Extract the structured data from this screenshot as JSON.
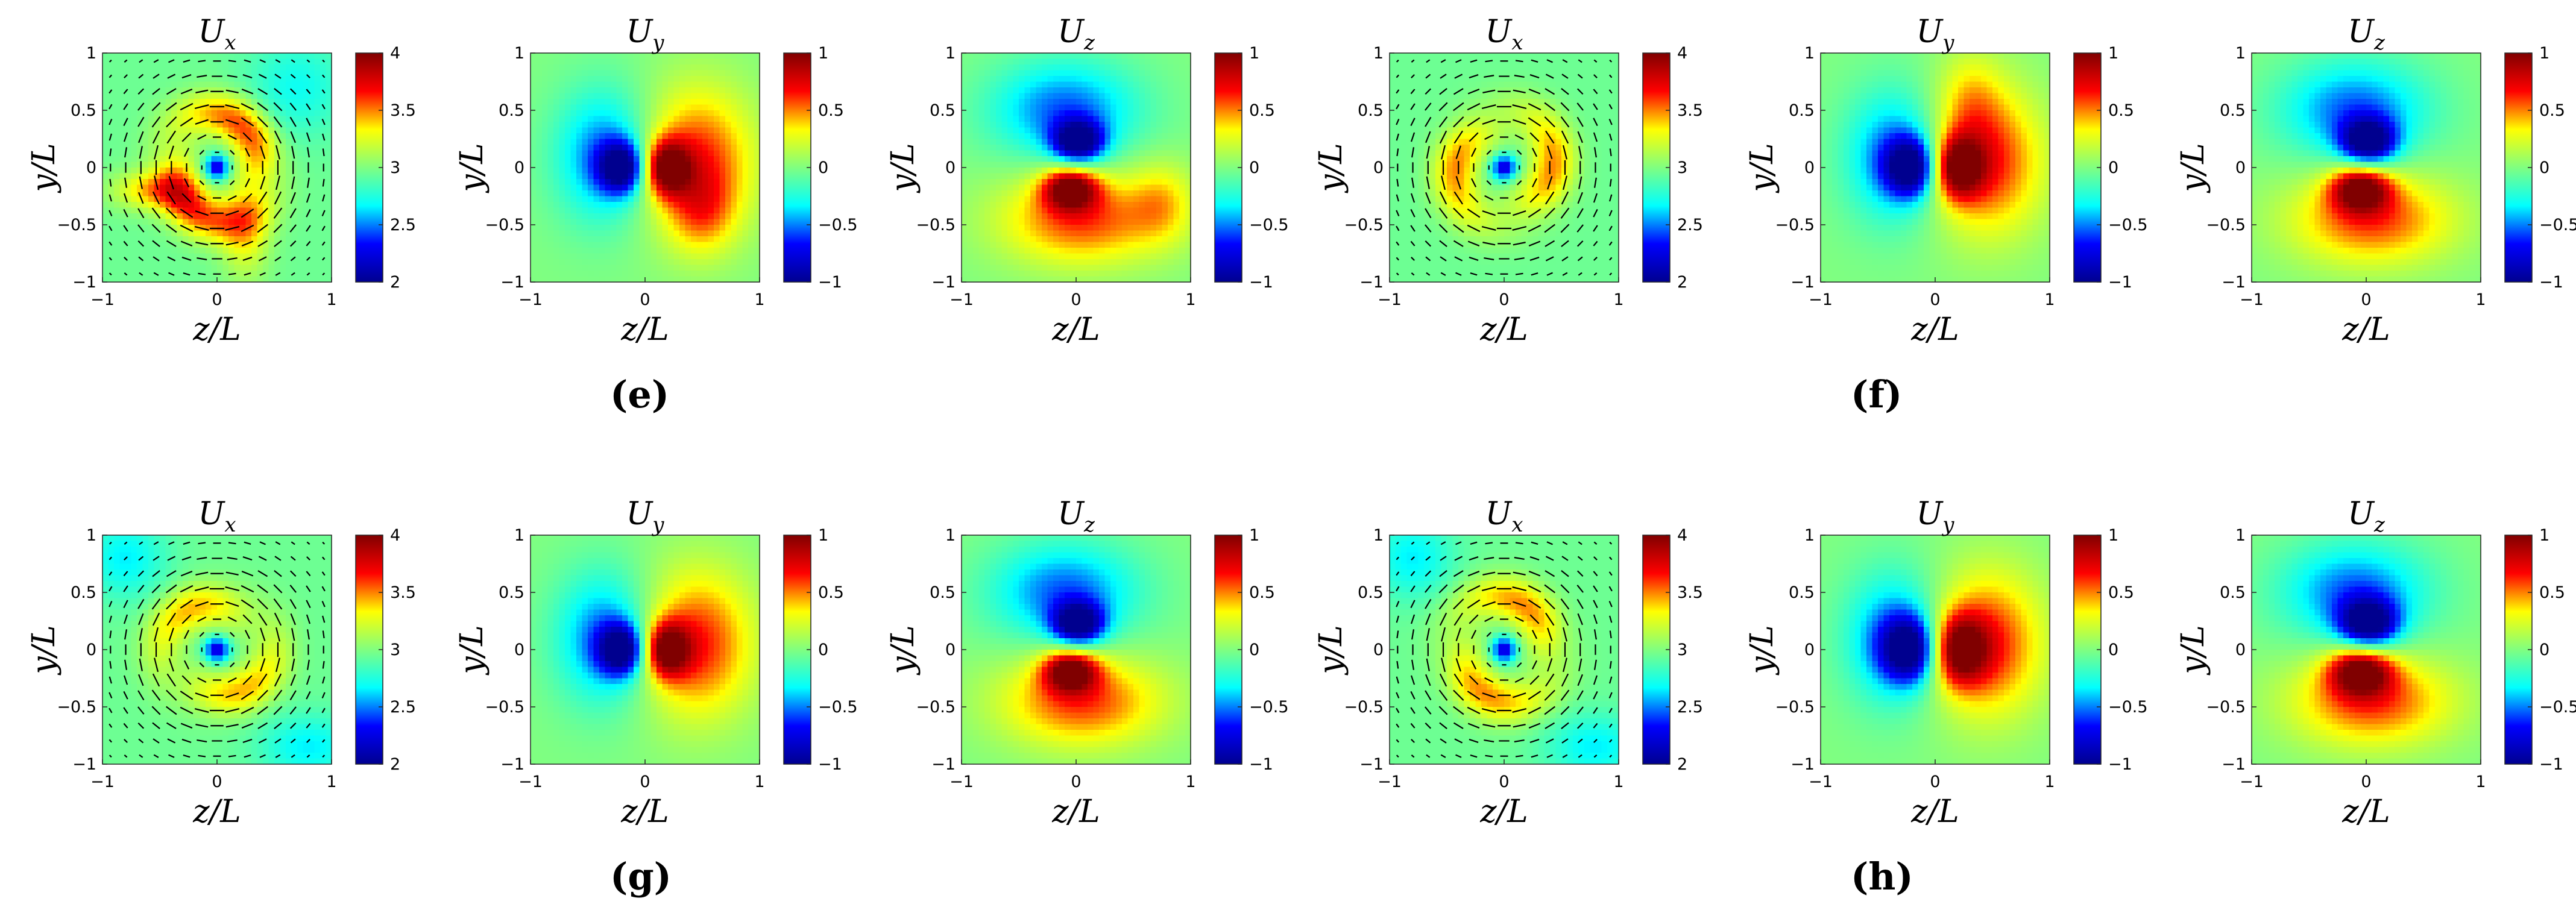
{
  "colors": {
    "colormap": [
      "#00008f",
      "#0000ff",
      "#00ffff",
      "#80ff80",
      "#ffff00",
      "#ff0000",
      "#800000"
    ],
    "arrow": "#000000",
    "axis": "#262626"
  },
  "axes_text": {
    "xlabel": "z/L",
    "ylabel": "y/L",
    "x_ticks": [
      "−1",
      "0",
      "1"
    ],
    "y_ticks": [
      "1",
      "0.5",
      "0",
      "−0.5",
      "−1"
    ]
  },
  "panel_labels": [
    "(e)",
    "(f)",
    "(g)",
    "(h)"
  ],
  "chart_data": [
    {
      "type": "heatmap",
      "title": "U_x",
      "xlabel": "z/L",
      "ylabel": "y/L",
      "xlim": [
        -1,
        1
      ],
      "ylim": [
        -1,
        1
      ],
      "clim": [
        2,
        4
      ],
      "colorbar_ticks": [
        "4",
        "3.5",
        "3",
        "2.5",
        "2"
      ],
      "field": "ux",
      "variant": 0,
      "arrows": true,
      "group": "(e)"
    },
    {
      "type": "heatmap",
      "title": "U_y",
      "xlabel": "z/L",
      "ylabel": "y/L",
      "xlim": [
        -1,
        1
      ],
      "ylim": [
        -1,
        1
      ],
      "clim": [
        -1,
        1
      ],
      "colorbar_ticks": [
        "1",
        "0.5",
        "0",
        "−0.5",
        "−1"
      ],
      "field": "uy",
      "variant": 0,
      "arrows": false,
      "group": "(e)"
    },
    {
      "type": "heatmap",
      "title": "U_z",
      "xlabel": "z/L",
      "ylabel": "y/L",
      "xlim": [
        -1,
        1
      ],
      "ylim": [
        -1,
        1
      ],
      "clim": [
        -1,
        1
      ],
      "colorbar_ticks": [
        "1",
        "0.5",
        "0",
        "−0.5",
        "−1"
      ],
      "field": "uz",
      "variant": 0,
      "arrows": false,
      "group": "(e)"
    },
    {
      "type": "heatmap",
      "title": "U_x",
      "xlabel": "z/L",
      "ylabel": "y/L",
      "xlim": [
        -1,
        1
      ],
      "ylim": [
        -1,
        1
      ],
      "clim": [
        2,
        4
      ],
      "colorbar_ticks": [
        "4",
        "3.5",
        "3",
        "2.5",
        "2"
      ],
      "field": "ux",
      "variant": 1,
      "arrows": true,
      "group": "(f)"
    },
    {
      "type": "heatmap",
      "title": "U_y",
      "xlabel": "z/L",
      "ylabel": "y/L",
      "xlim": [
        -1,
        1
      ],
      "ylim": [
        -1,
        1
      ],
      "clim": [
        -1,
        1
      ],
      "colorbar_ticks": [
        "1",
        "0.5",
        "0",
        "−0.5",
        "−1"
      ],
      "field": "uy",
      "variant": 1,
      "arrows": false,
      "group": "(f)"
    },
    {
      "type": "heatmap",
      "title": "U_z",
      "xlabel": "z/L",
      "ylabel": "y/L",
      "xlim": [
        -1,
        1
      ],
      "ylim": [
        -1,
        1
      ],
      "clim": [
        -1,
        1
      ],
      "colorbar_ticks": [
        "1",
        "0.5",
        "0",
        "−0.5",
        "−1"
      ],
      "field": "uz",
      "variant": 1,
      "arrows": false,
      "group": "(f)"
    },
    {
      "type": "heatmap",
      "title": "U_x",
      "xlabel": "z/L",
      "ylabel": "y/L",
      "xlim": [
        -1,
        1
      ],
      "ylim": [
        -1,
        1
      ],
      "clim": [
        2,
        4
      ],
      "colorbar_ticks": [
        "4",
        "3.5",
        "3",
        "2.5",
        "2"
      ],
      "field": "ux",
      "variant": 2,
      "arrows": true,
      "group": "(g)"
    },
    {
      "type": "heatmap",
      "title": "U_y",
      "xlabel": "z/L",
      "ylabel": "y/L",
      "xlim": [
        -1,
        1
      ],
      "ylim": [
        -1,
        1
      ],
      "clim": [
        -1,
        1
      ],
      "colorbar_ticks": [
        "1",
        "0.5",
        "0",
        "−0.5",
        "−1"
      ],
      "field": "uy",
      "variant": 2,
      "arrows": false,
      "group": "(g)"
    },
    {
      "type": "heatmap",
      "title": "U_z",
      "xlabel": "z/L",
      "ylabel": "y/L",
      "xlim": [
        -1,
        1
      ],
      "ylim": [
        -1,
        1
      ],
      "clim": [
        -1,
        1
      ],
      "colorbar_ticks": [
        "1",
        "0.5",
        "0",
        "−0.5",
        "−1"
      ],
      "field": "uz",
      "variant": 2,
      "arrows": false,
      "group": "(g)"
    },
    {
      "type": "heatmap",
      "title": "U_x",
      "xlabel": "z/L",
      "ylabel": "y/L",
      "xlim": [
        -1,
        1
      ],
      "ylim": [
        -1,
        1
      ],
      "clim": [
        2,
        4
      ],
      "colorbar_ticks": [
        "4",
        "3.5",
        "3",
        "2.5",
        "2"
      ],
      "field": "ux",
      "variant": 3,
      "arrows": true,
      "group": "(h)"
    },
    {
      "type": "heatmap",
      "title": "U_y",
      "xlabel": "z/L",
      "ylabel": "y/L",
      "xlim": [
        -1,
        1
      ],
      "ylim": [
        -1,
        1
      ],
      "clim": [
        -1,
        1
      ],
      "colorbar_ticks": [
        "1",
        "0.5",
        "0",
        "−0.5",
        "−1"
      ],
      "field": "uy",
      "variant": 3,
      "arrows": false,
      "group": "(h)"
    },
    {
      "type": "heatmap",
      "title": "U_z",
      "xlabel": "z/L",
      "ylabel": "y/L",
      "xlim": [
        -1,
        1
      ],
      "ylim": [
        -1,
        1
      ],
      "clim": [
        -1,
        1
      ],
      "colorbar_ticks": [
        "1",
        "0.5",
        "0",
        "−0.5",
        "−1"
      ],
      "field": "uz",
      "variant": 3,
      "arrows": false,
      "group": "(h)"
    }
  ]
}
